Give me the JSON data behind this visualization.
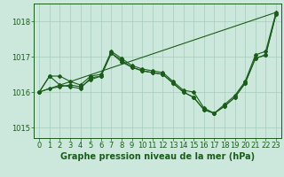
{
  "xlabel": "Graphe pression niveau de la mer (hPa)",
  "xlim": [
    -0.5,
    23.5
  ],
  "ylim": [
    1014.7,
    1018.5
  ],
  "yticks": [
    1015,
    1016,
    1017,
    1018
  ],
  "xticks": [
    0,
    1,
    2,
    3,
    4,
    5,
    6,
    7,
    8,
    9,
    10,
    11,
    12,
    13,
    14,
    15,
    16,
    17,
    18,
    19,
    20,
    21,
    22,
    23
  ],
  "bg_color": "#cce8dc",
  "grid_color": "#a8ccbb",
  "line_color": "#1a5c1a",
  "trend_line": [
    1016.0,
    1018.25
  ],
  "line1": [
    1016.0,
    1016.45,
    1016.45,
    1016.3,
    1016.2,
    1016.45,
    1016.5,
    1017.15,
    1016.95,
    1016.75,
    1016.65,
    1016.6,
    1016.55,
    1016.3,
    1016.05,
    1016.0,
    1015.55,
    1015.4,
    1015.65,
    1015.9,
    1016.3,
    1017.05,
    1017.15,
    1018.25
  ],
  "line2": [
    1016.0,
    1016.1,
    1016.15,
    1016.2,
    1016.15,
    1016.35,
    1016.45,
    1017.1,
    1016.85,
    1016.7,
    1016.6,
    1016.55,
    1016.5,
    1016.25,
    1016.0,
    1015.85,
    1015.5,
    1015.4,
    1015.6,
    1015.85,
    1016.25,
    1016.95,
    1017.05,
    1018.2
  ],
  "line3": [
    1016.0,
    1016.45,
    1016.2,
    1016.15,
    1016.1,
    1016.4,
    1016.45,
    1017.1,
    1016.9,
    1016.7,
    1016.6,
    1016.55,
    1016.5,
    1016.25,
    1016.0,
    1015.85,
    1015.5,
    1015.4,
    1015.6,
    1015.85,
    1016.25,
    1016.95,
    1017.05,
    1018.2
  ],
  "xlabel_fontsize": 7,
  "tick_fontsize": 6
}
